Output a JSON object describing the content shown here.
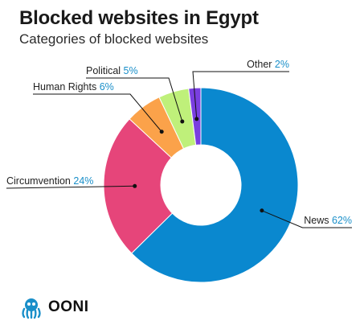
{
  "header": {
    "title": "Blocked websites in Egypt",
    "subtitle": "Categories of blocked websites"
  },
  "chart_data": {
    "type": "pie",
    "donut": true,
    "title": "Blocked websites in Egypt",
    "subtitle": "Categories of blocked websites",
    "slices": [
      {
        "label": "News",
        "value": 62,
        "pct_text": "62%",
        "color": "#0a88cf"
      },
      {
        "label": "Circumvention",
        "value": 24,
        "pct_text": "24%",
        "color": "#e6457a"
      },
      {
        "label": "Human Rights",
        "value": 6,
        "pct_text": "6%",
        "color": "#fba24a"
      },
      {
        "label": "Political",
        "value": 5,
        "pct_text": "5%",
        "color": "#bff07a"
      },
      {
        "label": "Other",
        "value": 2,
        "pct_text": "2%",
        "color": "#7a3fe0"
      }
    ]
  },
  "logo": {
    "text": "OONI",
    "icon": "ooni-octopus-icon",
    "color": "#1a8fc9"
  }
}
